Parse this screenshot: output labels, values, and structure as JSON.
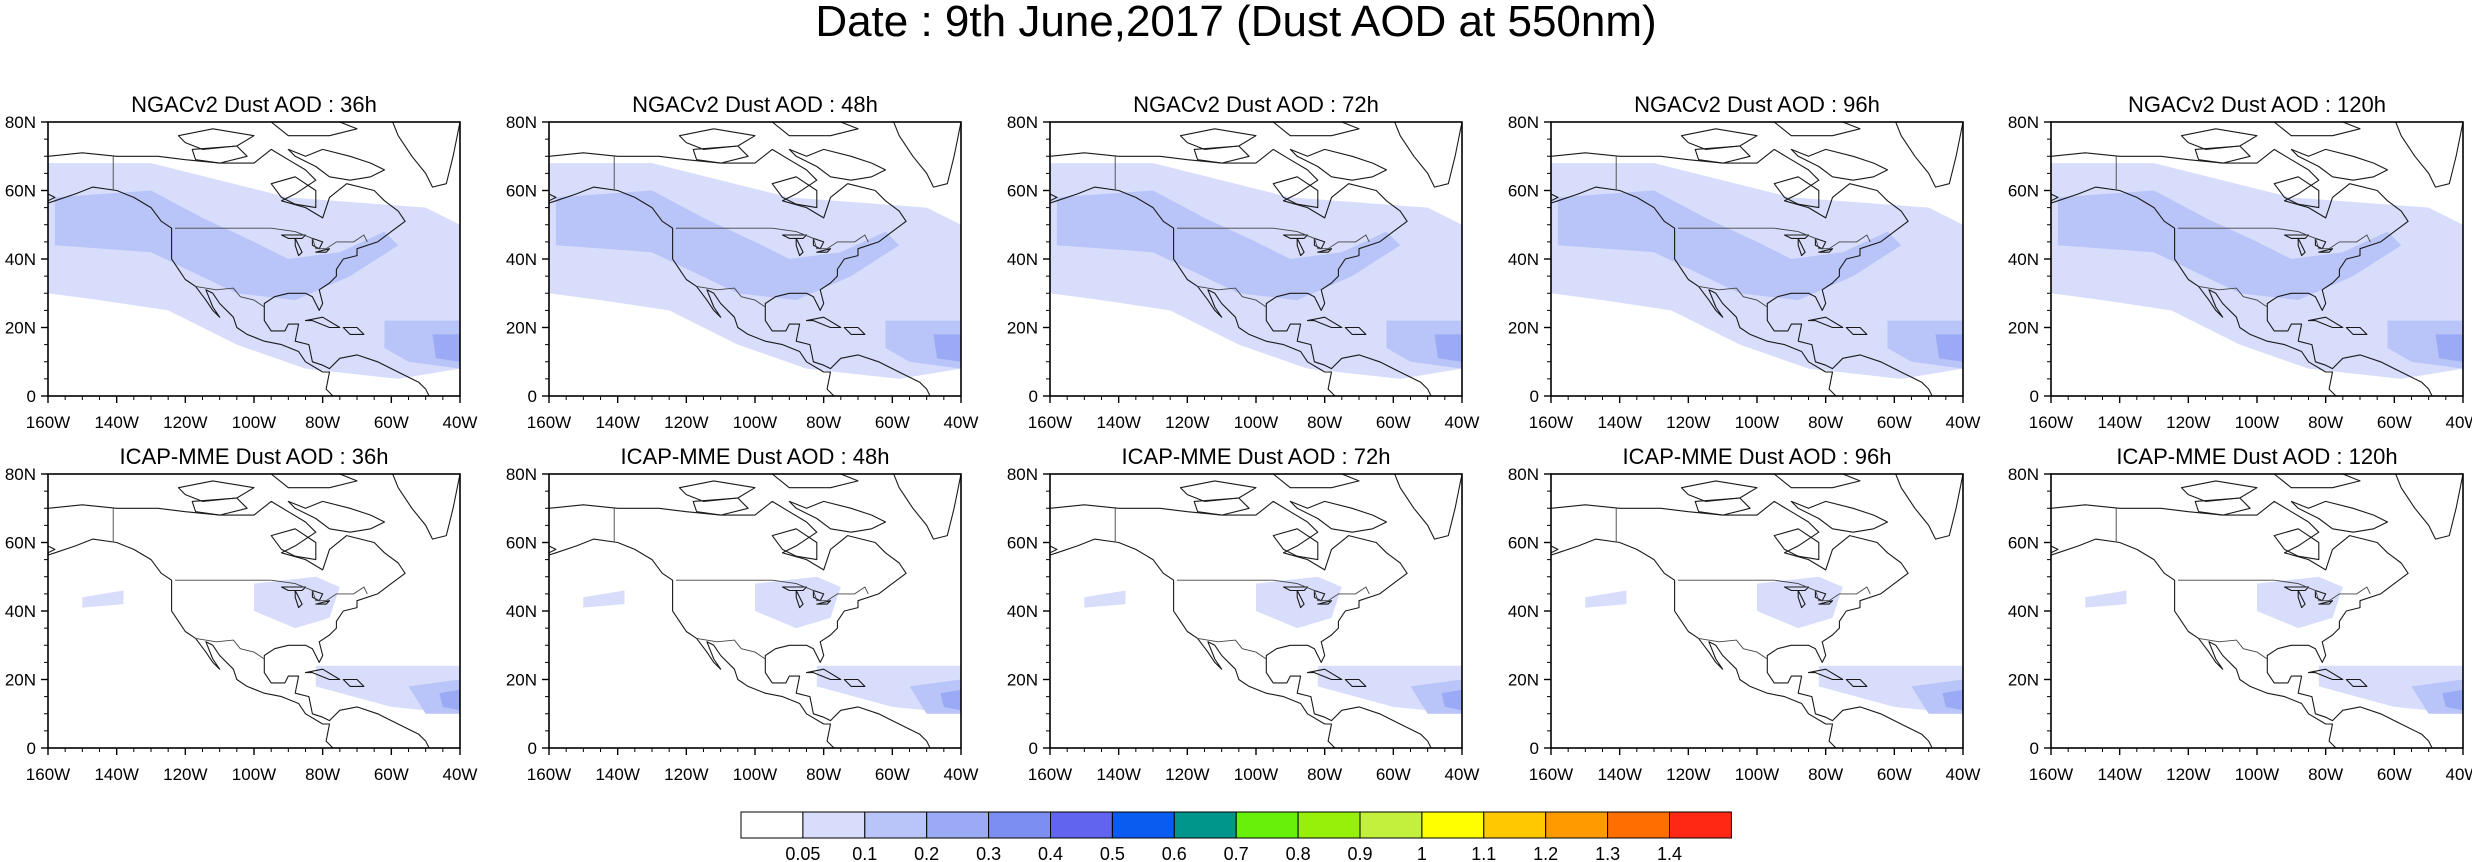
{
  "title": "Date : 9th June,2017 (Dust AOD at 550nm)",
  "axes": {
    "lat_labels": [
      "80N",
      "60N",
      "40N",
      "20N",
      "0"
    ],
    "lon_labels": [
      "160W",
      "140W",
      "120W",
      "100W",
      "80W",
      "60W",
      "40W"
    ],
    "lat_range": [
      0,
      80
    ],
    "lon_range": [
      -160,
      -40
    ]
  },
  "panels": [
    {
      "title": "NGACv2 Dust AOD : 36h",
      "model": "NGACv2",
      "lead": "36h"
    },
    {
      "title": "NGACv2 Dust AOD : 48h",
      "model": "NGACv2",
      "lead": "48h"
    },
    {
      "title": "NGACv2 Dust AOD : 72h",
      "model": "NGACv2",
      "lead": "72h"
    },
    {
      "title": "NGACv2 Dust AOD : 96h",
      "model": "NGACv2",
      "lead": "96h"
    },
    {
      "title": "NGACv2 Dust AOD : 120h",
      "model": "NGACv2",
      "lead": "120h"
    },
    {
      "title": "ICAP-MME Dust AOD : 36h",
      "model": "ICAP-MME",
      "lead": "36h"
    },
    {
      "title": "ICAP-MME Dust AOD : 48h",
      "model": "ICAP-MME",
      "lead": "48h"
    },
    {
      "title": "ICAP-MME Dust AOD : 72h",
      "model": "ICAP-MME",
      "lead": "72h"
    },
    {
      "title": "ICAP-MME Dust AOD : 96h",
      "model": "ICAP-MME",
      "lead": "96h"
    },
    {
      "title": "ICAP-MME Dust AOD : 120h",
      "model": "ICAP-MME",
      "lead": "120h"
    }
  ],
  "colorbar": {
    "labels": [
      "0.05",
      "0.1",
      "0.2",
      "0.3",
      "0.4",
      "0.5",
      "0.6",
      "0.7",
      "0.8",
      "0.9",
      "1",
      "1.1",
      "1.2",
      "1.3",
      "1.4"
    ],
    "colors": [
      "#ffffff",
      "#d7ddfb",
      "#b9c4f8",
      "#9aaaf5",
      "#7c8ef2",
      "#6064ef",
      "#0a5cf0",
      "#00968c",
      "#66f00a",
      "#96f00a",
      "#c3f03c",
      "#ffff00",
      "#ffc800",
      "#ff9b00",
      "#ff6e00",
      "#ff2814"
    ]
  }
}
